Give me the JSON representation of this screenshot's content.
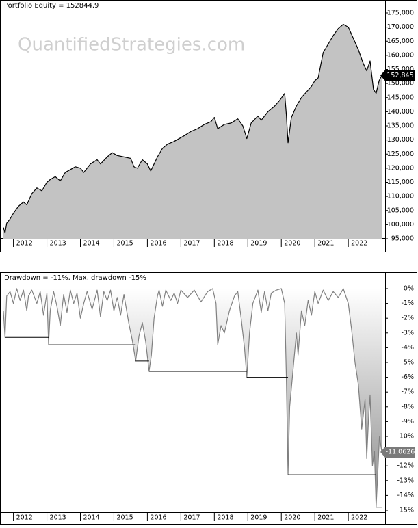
{
  "chart_data": [
    {
      "type": "area",
      "title": "Portfolio Equity = 152844.9",
      "watermark": "QuantifiedStrategies.com",
      "last_label": "152,845",
      "x": [
        2011.7,
        2011.75,
        2011.8,
        2011.9,
        2012.0,
        2012.15,
        2012.3,
        2012.4,
        2012.55,
        2012.7,
        2012.85,
        2013.0,
        2013.1,
        2013.25,
        2013.4,
        2013.55,
        2013.7,
        2013.85,
        2014.0,
        2014.1,
        2014.3,
        2014.5,
        2014.6,
        2014.8,
        2014.95,
        2015.1,
        2015.3,
        2015.5,
        2015.6,
        2015.7,
        2015.85,
        2016.0,
        2016.1,
        2016.3,
        2016.45,
        2016.6,
        2016.8,
        2016.95,
        2017.1,
        2017.3,
        2017.5,
        2017.7,
        2017.9,
        2018.0,
        2018.1,
        2018.3,
        2018.5,
        2018.7,
        2018.85,
        2018.97,
        2019.1,
        2019.3,
        2019.4,
        2019.6,
        2019.8,
        2019.95,
        2020.1,
        2020.15,
        2020.2,
        2020.3,
        2020.45,
        2020.6,
        2020.75,
        2020.9,
        2021.0,
        2021.1,
        2021.25,
        2021.4,
        2021.55,
        2021.7,
        2021.85,
        2022.0,
        2022.15,
        2022.3,
        2022.45,
        2022.55,
        2022.65,
        2022.75,
        2022.83,
        2022.92,
        2023.0
      ],
      "series": [
        {
          "color": "#000000",
          "fill": "#c3c3c3",
          "values": [
            99000,
            97000,
            100500,
            102000,
            104000,
            106500,
            108000,
            107000,
            111000,
            113000,
            112000,
            115000,
            116000,
            117000,
            115500,
            118500,
            119500,
            120500,
            120000,
            118500,
            121500,
            123000,
            121500,
            124000,
            125500,
            124500,
            124000,
            123500,
            120500,
            120000,
            123000,
            121500,
            119000,
            124000,
            127000,
            128500,
            129500,
            130500,
            131500,
            133000,
            134000,
            135500,
            136500,
            138000,
            134000,
            135500,
            136000,
            137500,
            135000,
            130500,
            136000,
            138500,
            137000,
            140000,
            142000,
            144000,
            146500,
            139000,
            129000,
            138000,
            142000,
            145000,
            147000,
            149000,
            151000,
            152000,
            161000,
            164000,
            167000,
            169500,
            171000,
            170000,
            166000,
            162000,
            157000,
            154500,
            158000,
            148000,
            146500,
            151000,
            152844.9
          ]
        }
      ],
      "label_box_color": "#000000",
      "xlim": [
        2011.6,
        2023.1
      ],
      "xticks": [
        2012,
        2013,
        2014,
        2015,
        2016,
        2017,
        2018,
        2019,
        2020,
        2021,
        2022
      ],
      "ylim": [
        95000,
        175000
      ],
      "yticks": [
        {
          "value": 95000,
          "label": "95,000"
        },
        {
          "value": 100000,
          "label": "100,000"
        },
        {
          "value": 105000,
          "label": "105,000"
        },
        {
          "value": 110000,
          "label": "110,000"
        },
        {
          "value": 115000,
          "label": "115,000"
        },
        {
          "value": 120000,
          "label": "120,000"
        },
        {
          "value": 125000,
          "label": "125,000"
        },
        {
          "value": 130000,
          "label": "130,000"
        },
        {
          "value": 135000,
          "label": "135,000"
        },
        {
          "value": 140000,
          "label": "140,000"
        },
        {
          "value": 145000,
          "label": "145,000"
        },
        {
          "value": 150000,
          "label": "150,000"
        },
        {
          "value": 155000,
          "label": "155,000"
        },
        {
          "value": 160000,
          "label": "160,000"
        },
        {
          "value": 165000,
          "label": "165,000"
        },
        {
          "value": 170000,
          "label": "170,000"
        },
        {
          "value": 175000,
          "label": "175,000"
        }
      ]
    },
    {
      "type": "area",
      "title": "Drawdown = -11%, Max. drawdown -15%",
      "x": [
        2011.7,
        2011.75,
        2011.8,
        2011.9,
        2012.0,
        2012.1,
        2012.2,
        2012.3,
        2012.4,
        2012.45,
        2012.55,
        2012.7,
        2012.8,
        2012.9,
        2013.0,
        2013.05,
        2013.1,
        2013.2,
        2013.3,
        2013.4,
        2013.5,
        2013.6,
        2013.7,
        2013.8,
        2013.9,
        2014.0,
        2014.1,
        2014.2,
        2014.35,
        2014.5,
        2014.6,
        2014.7,
        2014.8,
        2014.9,
        2015.0,
        2015.1,
        2015.2,
        2015.3,
        2015.45,
        2015.55,
        2015.65,
        2015.75,
        2015.85,
        2015.95,
        2016.05,
        2016.12,
        2016.2,
        2016.3,
        2016.35,
        2016.45,
        2016.55,
        2016.7,
        2016.8,
        2016.9,
        2017.0,
        2017.2,
        2017.4,
        2017.6,
        2017.8,
        2017.95,
        2018.05,
        2018.1,
        2018.2,
        2018.3,
        2018.45,
        2018.6,
        2018.7,
        2018.8,
        2018.9,
        2018.97,
        2019.05,
        2019.15,
        2019.3,
        2019.4,
        2019.5,
        2019.6,
        2019.7,
        2019.85,
        2020.0,
        2020.1,
        2020.15,
        2020.2,
        2020.25,
        2020.35,
        2020.45,
        2020.5,
        2020.6,
        2020.7,
        2020.8,
        2020.9,
        2021.0,
        2021.1,
        2021.25,
        2021.4,
        2021.55,
        2021.7,
        2021.85,
        2022.0,
        2022.1,
        2022.2,
        2022.3,
        2022.4,
        2022.5,
        2022.55,
        2022.6,
        2022.65,
        2022.72,
        2022.78,
        2022.83,
        2022.88,
        2022.93,
        2023.0
      ],
      "series": [
        {
          "color": "#808080",
          "fill_gradient": [
            "#ffffff",
            "#8a8a8a"
          ],
          "values": [
            -1.5,
            -3.3,
            -0.5,
            -0.2,
            -1.0,
            0,
            -0.8,
            -0.1,
            -1.5,
            -0.5,
            -0.1,
            -1.0,
            -0.2,
            -1.8,
            -0.3,
            -3.8,
            -1.5,
            -0.2,
            -1.2,
            -2.5,
            -0.4,
            -1.6,
            -0.1,
            -1.0,
            -0.3,
            -2.0,
            -1.0,
            -0.2,
            -1.4,
            -0.1,
            -1.9,
            -0.2,
            -0.8,
            -0.1,
            -1.5,
            -0.6,
            -1.8,
            -0.4,
            -2.4,
            -3.5,
            -4.9,
            -3.2,
            -2.3,
            -3.6,
            -5.6,
            -4.5,
            -2.0,
            -0.5,
            -0.1,
            -1.2,
            -0.1,
            -0.8,
            -0.3,
            -1.0,
            -0.1,
            -0.6,
            -0.1,
            -0.9,
            -0.2,
            0,
            -1.0,
            -3.8,
            -2.5,
            -3.0,
            -1.5,
            -0.5,
            -0.2,
            -2.0,
            -4.0,
            -6.0,
            -3.0,
            -1.0,
            -0.1,
            -1.6,
            -0.2,
            -1.5,
            -0.3,
            -0.1,
            0,
            -1.0,
            -6.0,
            -12.6,
            -8.0,
            -5.5,
            -3.0,
            -4.5,
            -1.5,
            -2.5,
            -0.8,
            -1.8,
            -0.2,
            -1.0,
            -0.1,
            -0.8,
            -0.2,
            -0.6,
            0,
            -1.0,
            -2.8,
            -5.0,
            -6.5,
            -9.5,
            -7.5,
            -11.5,
            -9.0,
            -7.2,
            -12.0,
            -11.0,
            -14.8,
            -12.5,
            -10.0,
            -11.0626
          ]
        },
        {
          "color": "#000000",
          "step": true,
          "x": [
            2011.75,
            2013.05,
            2015.65,
            2016.05,
            2018.97,
            2020.2,
            2022.83
          ],
          "values": [
            -3.3,
            -3.8,
            -4.9,
            -5.6,
            -6.0,
            -12.6,
            -14.8
          ]
        }
      ],
      "label_box_color": "#7a7a7a",
      "xlim": [
        2011.6,
        2023.1
      ],
      "xticks": [
        2012,
        2013,
        2014,
        2015,
        2016,
        2017,
        2018,
        2019,
        2020,
        2021,
        2022
      ],
      "ylim": [
        -15,
        0
      ],
      "yticks": [
        {
          "value": 0,
          "label": "0%"
        },
        {
          "value": -1,
          "label": "-1%"
        },
        {
          "value": -2,
          "label": "-2%"
        },
        {
          "value": -3,
          "label": "-3%"
        },
        {
          "value": -4,
          "label": "-4%"
        },
        {
          "value": -5,
          "label": "-5%"
        },
        {
          "value": -6,
          "label": "-6%"
        },
        {
          "value": -7,
          "label": "-7%"
        },
        {
          "value": -8,
          "label": "-8%"
        },
        {
          "value": -9,
          "label": "-9%"
        },
        {
          "value": -10,
          "label": "-10%"
        },
        {
          "value": -11,
          "label": "-11%"
        },
        {
          "value": -12,
          "label": "-12%"
        },
        {
          "value": -13,
          "label": "-13%"
        },
        {
          "value": -14,
          "label": "-14%"
        },
        {
          "value": -15,
          "label": "-15%"
        }
      ]
    }
  ]
}
